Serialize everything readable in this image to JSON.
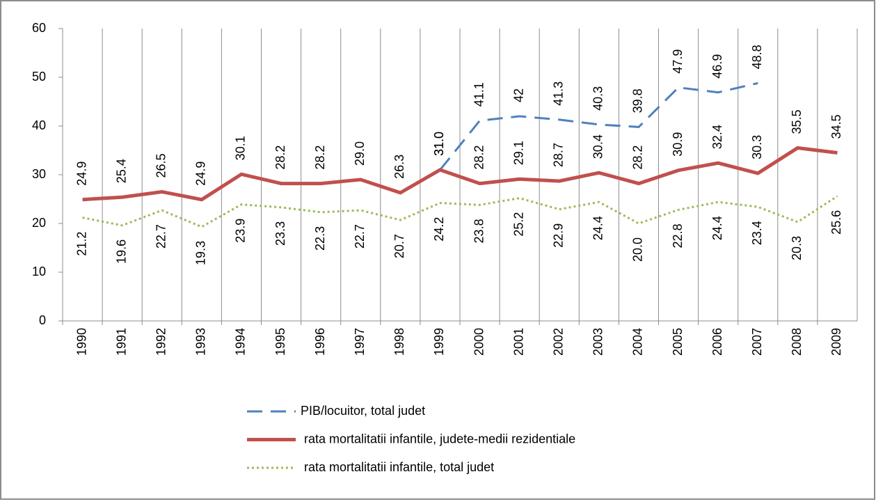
{
  "chart_data": {
    "type": "line",
    "categories": [
      "1990",
      "1991",
      "1992",
      "1993",
      "1994",
      "1995",
      "1996",
      "1997",
      "1998",
      "1999",
      "2000",
      "2001",
      "2002",
      "2003",
      "2004",
      "2005",
      "2006",
      "2007",
      "2008",
      "2009"
    ],
    "series": [
      {
        "name": "PIB/locuitor, total judet",
        "color": "#4f81bd",
        "style": "dashed",
        "values": [
          null,
          null,
          null,
          null,
          null,
          null,
          null,
          null,
          null,
          31.0,
          41.1,
          42,
          41.3,
          40.3,
          39.8,
          47.9,
          46.9,
          48.8,
          null,
          null
        ],
        "value_labels": [
          null,
          null,
          null,
          null,
          null,
          null,
          null,
          null,
          null,
          "31.0",
          "41.1",
          "42",
          "41.3",
          "40.3",
          "39.8",
          "47.9",
          "46.9",
          "48.8",
          null,
          null
        ]
      },
      {
        "name": "rata mortalitatii infantile, judete-medii rezidentiale",
        "color": "#c0504d",
        "style": "solid",
        "values": [
          24.9,
          25.4,
          26.5,
          24.9,
          30.1,
          28.2,
          28.2,
          29.0,
          26.3,
          31.0,
          28.2,
          29.1,
          28.7,
          30.4,
          28.2,
          30.9,
          32.4,
          30.3,
          35.5,
          34.5
        ],
        "value_labels": [
          "24.9",
          "25.4",
          "26.5",
          "24.9",
          "30.1",
          "28.2",
          "28.2",
          "29.0",
          "26.3",
          "31.0",
          "28.2",
          "29.1",
          "28.7",
          "30.4",
          "28.2",
          "30.9",
          "32.4",
          "30.3",
          "35.5",
          "34.5"
        ]
      },
      {
        "name": "rata mortalitatii infantile, total judet",
        "color": "#9bbb59",
        "style": "dotted",
        "values": [
          21.2,
          19.6,
          22.7,
          19.3,
          23.9,
          23.3,
          22.3,
          22.7,
          20.7,
          24.2,
          23.8,
          25.2,
          22.9,
          24.4,
          20.0,
          22.8,
          24.4,
          23.4,
          20.3,
          25.6
        ],
        "value_labels": [
          "21.2",
          "19.6",
          "22.7",
          "19.3",
          "23.9",
          "23.3",
          "22.3",
          "22.7",
          "20.7",
          "24.2",
          "23.8",
          "25.2",
          "22.9",
          "24.4",
          "20.0",
          "22.8",
          "24.4",
          "23.4",
          "20.3",
          "25.6"
        ]
      }
    ],
    "ylim": [
      0,
      60
    ],
    "yticks": [
      0,
      10,
      20,
      30,
      40,
      50,
      60
    ],
    "grid": "vertical",
    "legend": "bottom"
  }
}
